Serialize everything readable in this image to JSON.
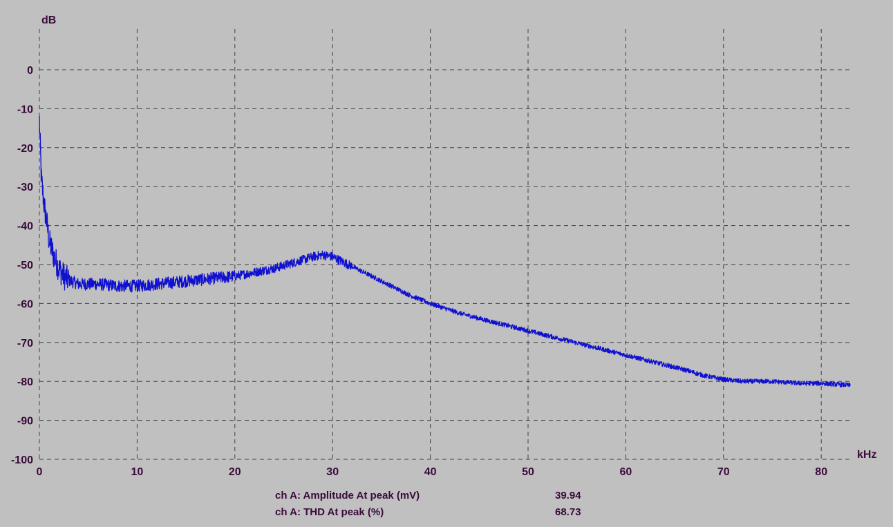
{
  "chart_data": {
    "type": "line",
    "ylabel": "dB",
    "xlabel": "kHz",
    "xlim": [
      0,
      85
    ],
    "ylim": [
      -100,
      10
    ],
    "x_ticks": [
      0,
      10,
      20,
      30,
      40,
      50,
      60,
      70,
      80
    ],
    "y_ticks": [
      0,
      -10,
      -20,
      -30,
      -40,
      -50,
      -60,
      -70,
      -80,
      -90,
      -100
    ],
    "grid": true,
    "line_color": "#1010d0",
    "background": "#c0c0c0",
    "series": [
      {
        "x": [
          0.0,
          0.2,
          0.5,
          0.8,
          1.0,
          1.5,
          2.0,
          2.5,
          3.0,
          4.0,
          5.0,
          6.0,
          8.0,
          10.0,
          12.0,
          14.0,
          16.0,
          18.0,
          20.0,
          22.0,
          24.0,
          26.0,
          28.0,
          29.0,
          30.0,
          32.0,
          34.0,
          36.0,
          38.0,
          40.0,
          43.0,
          46.0,
          50.0,
          54.0,
          58.0,
          62.0,
          66.0,
          68.0,
          70.0,
          72.0,
          75.0,
          78.0,
          80.0,
          83.0
        ],
        "y": [
          -13,
          -28,
          -35,
          -40,
          -44,
          -48,
          -51,
          -53,
          -54,
          -55,
          -55,
          -55,
          -55.5,
          -55.5,
          -55,
          -54.5,
          -54,
          -53.5,
          -53,
          -52,
          -51,
          -49.5,
          -48,
          -47.5,
          -48,
          -50.5,
          -53,
          -55.5,
          -58,
          -60,
          -62.5,
          -64.5,
          -67,
          -69.5,
          -72,
          -74.5,
          -77,
          -78.5,
          -79.5,
          -80,
          -80,
          -80.5,
          -80.5,
          -81
        ]
      }
    ]
  },
  "readouts": [
    {
      "label": "ch A: Amplitude At peak (mV)",
      "value": "39.94"
    },
    {
      "label": "ch A: THD At peak (%)",
      "value": "68.73"
    }
  ]
}
